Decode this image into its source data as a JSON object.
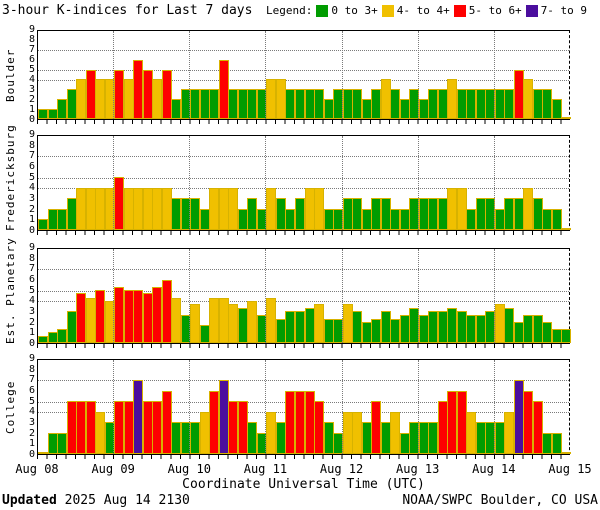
{
  "title": "3-hour K-indices for Last 7 days",
  "legend": {
    "label": "Legend:",
    "items": [
      {
        "label": "0 to 3+",
        "color": "#009c00"
      },
      {
        "label": "4- to 4+",
        "color": "#f0c000"
      },
      {
        "label": "5- to 6+",
        "color": "#fe0000"
      },
      {
        "label": "7- to 9",
        "color": "#4b0e9e"
      }
    ]
  },
  "axes": {
    "x_labels": [
      "Aug 08",
      "Aug 09",
      "Aug 10",
      "Aug 11",
      "Aug 12",
      "Aug 13",
      "Aug 14",
      "Aug 15"
    ],
    "x_title": "Coordinate Universal Time (UTC)",
    "y_ticks": [
      "0",
      "1",
      "2",
      "3",
      "4",
      "5",
      "6",
      "7",
      "8",
      "9"
    ],
    "y_range": [
      0,
      9
    ],
    "gridline_ks": [
      4,
      5,
      7
    ],
    "grid": "dotted at K=4,5,7 and at day boundaries"
  },
  "footer": {
    "updated_label": "Updated",
    "updated_value": " 2025 Aug 14 2130",
    "source": "NOAA/SWPC Boulder, CO USA"
  },
  "chart_data": {
    "type": "bar",
    "title": "3-hour K-indices for Last 7 days",
    "x_days": [
      "Aug 08",
      "Aug 09",
      "Aug 10",
      "Aug 11",
      "Aug 12",
      "Aug 13",
      "Aug 14"
    ],
    "bars_per_day": 8,
    "interval_hours": 3,
    "ylim": [
      0,
      9
    ],
    "legend_position": "top-right",
    "color_rules": {
      "green_max": 3.49,
      "yellow_max": 4.49,
      "red_max": 6.49,
      "green": "#009c00",
      "yellow": "#f0c000",
      "red": "#fe0000",
      "purple": "#4b0e9e",
      "bar_outline": "#d7b200"
    },
    "panels": [
      {
        "station": "Boulder",
        "values": [
          1,
          1,
          2,
          3,
          4,
          5,
          4,
          4,
          5,
          4,
          6,
          5,
          4,
          5,
          2,
          3,
          3,
          3,
          3,
          6,
          3,
          3,
          3,
          3,
          4,
          4,
          3,
          3,
          3,
          3,
          2,
          3,
          3,
          3,
          2,
          3,
          4,
          3,
          2,
          3,
          2,
          3,
          3,
          4,
          3,
          3,
          3,
          3,
          3,
          3,
          5,
          4,
          3,
          3,
          2,
          0
        ]
      },
      {
        "station": "Fredericksburg",
        "values": [
          1,
          2,
          2,
          3,
          4,
          4,
          4,
          4,
          5,
          4,
          4,
          4,
          4,
          4,
          3,
          3,
          3,
          2,
          4,
          4,
          4,
          2,
          3,
          2,
          4,
          3,
          2,
          3,
          4,
          4,
          2,
          2,
          3,
          3,
          2,
          3,
          3,
          2,
          2,
          3,
          3,
          3,
          3,
          4,
          4,
          2,
          3,
          3,
          2,
          3,
          3,
          4,
          3,
          2,
          2,
          0
        ]
      },
      {
        "station": "Est. Planetary",
        "values": [
          0.7,
          1,
          1.3,
          3,
          4.7,
          4.3,
          5,
          4,
          5.3,
          5,
          5,
          4.7,
          5.3,
          6,
          4.3,
          2.7,
          3.7,
          1.7,
          4.3,
          4.3,
          3.7,
          3.3,
          4,
          2.7,
          4.3,
          2.3,
          3,
          3,
          3.3,
          3.7,
          2.3,
          2.3,
          3.7,
          3,
          2,
          2.3,
          3,
          2.3,
          2.7,
          3.3,
          2.7,
          3,
          3,
          3.3,
          3,
          2.7,
          2.7,
          3,
          3.7,
          3.3,
          2,
          2.7,
          2.7,
          2,
          1.3,
          1.3
        ]
      },
      {
        "station": "College",
        "values": [
          0,
          2,
          2,
          5,
          5,
          5,
          4,
          3,
          5,
          5,
          7,
          5,
          5,
          6,
          3,
          3,
          3,
          4,
          6,
          7,
          5,
          5,
          3,
          2,
          4,
          3,
          6,
          6,
          6,
          5,
          3,
          2,
          4,
          4,
          3,
          5,
          3,
          4,
          2,
          3,
          3,
          3,
          5,
          6,
          6,
          4,
          3,
          3,
          3,
          4,
          7,
          6,
          5,
          2,
          2,
          0
        ]
      }
    ]
  }
}
